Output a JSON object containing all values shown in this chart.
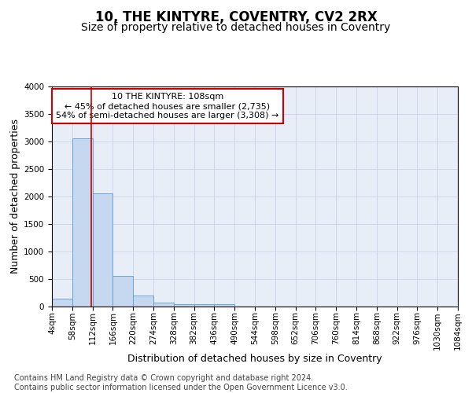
{
  "title": "10, THE KINTYRE, COVENTRY, CV2 2RX",
  "subtitle": "Size of property relative to detached houses in Coventry",
  "xlabel": "Distribution of detached houses by size in Coventry",
  "ylabel": "Number of detached properties",
  "footer_line1": "Contains HM Land Registry data © Crown copyright and database right 2024.",
  "footer_line2": "Contains public sector information licensed under the Open Government Licence v3.0.",
  "annotation_line1": "10 THE KINTYRE: 108sqm",
  "annotation_line2": "← 45% of detached houses are smaller (2,735)",
  "annotation_line3": "54% of semi-detached houses are larger (3,308) →",
  "property_size": 108,
  "bin_edges": [
    4,
    58,
    112,
    166,
    220,
    274,
    328,
    382,
    436,
    490,
    544,
    598,
    652,
    706,
    760,
    814,
    868,
    922,
    976,
    1030,
    1084
  ],
  "bar_heights": [
    150,
    3060,
    2060,
    560,
    200,
    75,
    50,
    45,
    40,
    0,
    0,
    0,
    0,
    0,
    0,
    0,
    0,
    0,
    0,
    0
  ],
  "bar_color": "#c5d8f0",
  "bar_edge_color": "#5b9bd5",
  "line_color": "#cc0000",
  "ylim": [
    0,
    4000
  ],
  "yticks": [
    0,
    500,
    1000,
    1500,
    2000,
    2500,
    3000,
    3500,
    4000
  ],
  "grid_color": "#c8d4e8",
  "bg_color": "#e8eef8",
  "title_fontsize": 12,
  "subtitle_fontsize": 10,
  "axis_label_fontsize": 9,
  "tick_fontsize": 7.5,
  "annotation_fontsize": 8,
  "footer_fontsize": 7
}
